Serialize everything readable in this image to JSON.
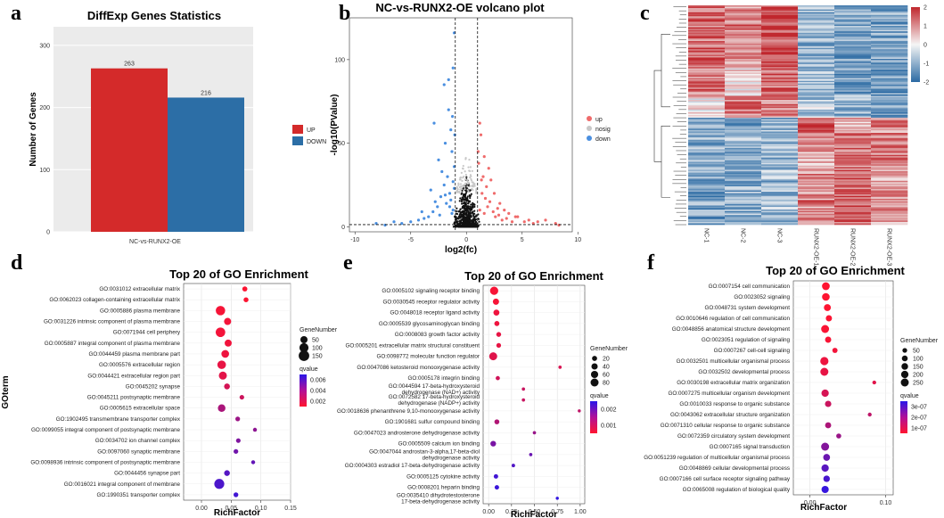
{
  "panel_letters": [
    "a",
    "b",
    "c",
    "d",
    "e",
    "f"
  ],
  "colors": {
    "up": "#d42a2a",
    "down": "#2c6ea6",
    "nosig": "#c8c8c8",
    "volcano_up": "#ef6b6b",
    "volcano_down": "#4a8fe0",
    "q_low": "#ff1430",
    "q_high": "#2a16e8"
  },
  "chart_data": [
    {
      "panel": "a",
      "type": "bar",
      "title": "DiffExp Genes Statistics",
      "xlabel": "NC-vs-RUNX2-OE",
      "ylabel": "Number of Genes",
      "categories": [
        "NC-vs-RUNX2-OE"
      ],
      "series": [
        {
          "name": "UP",
          "values": [
            263
          ]
        },
        {
          "name": "DOWN",
          "values": [
            216
          ]
        }
      ],
      "yticks": [
        "0",
        "100",
        "200",
        "300"
      ],
      "ylim": [
        0,
        330
      ],
      "legend": "right"
    },
    {
      "panel": "b",
      "type": "scatter",
      "title": "NC-vs-RUNX2-OE volcano plot",
      "xlabel": "log2(fc)",
      "ylabel": "-log10(PValue)",
      "xticks": [
        "-10",
        "-5",
        "0",
        "5",
        "10"
      ],
      "yticks": [
        "0",
        "50",
        "100"
      ],
      "xlim": [
        -10.5,
        9.5
      ],
      "ylim": [
        -3,
        125
      ],
      "legend_items": [
        "up",
        "nosig",
        "down"
      ],
      "legend": "right",
      "thresholds": {
        "log2fc": [
          -1,
          1
        ],
        "neg_log10_p": 1.3
      },
      "series": [
        {
          "name": "up",
          "points": [
            [
              1.2,
              10
            ],
            [
              1.4,
              20
            ],
            [
              1.6,
              8
            ],
            [
              1.9,
              12
            ],
            [
              2.1,
              15
            ],
            [
              2.4,
              9
            ],
            [
              2.6,
              6
            ],
            [
              2.9,
              7
            ],
            [
              3.2,
              4
            ],
            [
              3.6,
              5
            ],
            [
              4.1,
              3
            ],
            [
              4.6,
              6
            ],
            [
              5.2,
              3
            ],
            [
              6.0,
              2
            ],
            [
              6.4,
              3
            ],
            [
              7.1,
              4
            ],
            [
              8.0,
              2
            ],
            [
              8.3,
              1
            ],
            [
              1.3,
              55
            ],
            [
              1.1,
              38
            ],
            [
              1.5,
              30
            ],
            [
              1.8,
              24
            ],
            [
              2.2,
              28
            ],
            [
              1.6,
              42
            ],
            [
              2.0,
              35
            ],
            [
              1.2,
              62
            ],
            [
              2.5,
              20
            ],
            [
              3.0,
              14
            ],
            [
              3.4,
              10
            ],
            [
              1.7,
              17
            ],
            [
              2.8,
              11
            ],
            [
              3.8,
              8
            ],
            [
              4.4,
              6
            ],
            [
              5.6,
              4
            ],
            [
              1.05,
              45
            ],
            [
              1.35,
              28
            ]
          ]
        },
        {
          "name": "down",
          "points": [
            [
              -1.2,
              10
            ],
            [
              -1.5,
              20
            ],
            [
              -1.8,
              14
            ],
            [
              -2.0,
              25
            ],
            [
              -2.3,
              18
            ],
            [
              -2.6,
              12
            ],
            [
              -3.0,
              9
            ],
            [
              -3.4,
              6
            ],
            [
              -3.8,
              5
            ],
            [
              -4.3,
              4
            ],
            [
              -5.0,
              3
            ],
            [
              -5.8,
              2
            ],
            [
              -6.5,
              3
            ],
            [
              -7.3,
              1
            ],
            [
              -8.1,
              2
            ],
            [
              -1.1,
              116
            ],
            [
              -2.0,
              85
            ],
            [
              -1.6,
              70
            ],
            [
              -1.2,
              95
            ],
            [
              -2.9,
              62
            ],
            [
              -1.4,
              58
            ],
            [
              -1.9,
              50
            ],
            [
              -1.3,
              45
            ],
            [
              -2.5,
              40
            ],
            [
              -1.1,
              36
            ],
            [
              -1.7,
              30
            ],
            [
              -2.2,
              33
            ],
            [
              -1.2,
              27
            ],
            [
              -3.2,
              22
            ],
            [
              -1.9,
              19
            ],
            [
              -1.4,
              16
            ],
            [
              -2.8,
              15
            ],
            [
              -1.5,
              12
            ],
            [
              -4.0,
              9
            ],
            [
              -1.3,
              8
            ],
            [
              -2.4,
              7
            ],
            [
              -1.1,
              23
            ],
            [
              -1.05,
              55
            ],
            [
              -1.25,
              66
            ],
            [
              -1.6,
              88
            ]
          ]
        }
      ]
    },
    {
      "panel": "c",
      "type": "heatmap",
      "columns": [
        "NC-1",
        "NC-2",
        "NC-3",
        "RUNX2-OE-1",
        "RUNX2-OE-2",
        "RUNX2-OE-3"
      ],
      "colorbar_ticks": [
        "2",
        "1",
        "0",
        "-1",
        "-2"
      ],
      "clim": [
        -2,
        2
      ],
      "blocks": [
        {
          "rows": 42,
          "pattern": [
            1.3,
            1.1,
            1.7,
            -1.0,
            -1.1,
            -1.2
          ]
        },
        {
          "rows": 24,
          "pattern": [
            1.2,
            0.3,
            1.3,
            -0.8,
            -1.2,
            -1.3
          ]
        },
        {
          "rows": 16,
          "pattern": [
            0.2,
            1.2,
            1.1,
            -0.6,
            -0.9,
            -1.3
          ]
        },
        {
          "rows": 12,
          "pattern": [
            -1.1,
            -1.2,
            -1.0,
            1.7,
            0.8,
            1.0
          ]
        },
        {
          "rows": 26,
          "pattern": [
            -1.0,
            -0.9,
            -1.0,
            0.6,
            1.3,
            1.2
          ]
        },
        {
          "rows": 40,
          "pattern": [
            -1.2,
            -1.0,
            -0.9,
            1.1,
            1.5,
            0.9
          ]
        }
      ]
    },
    {
      "panel": "d",
      "type": "scatter",
      "title": "Top 20 of GO Enrichment",
      "xlabel": "RichFactor",
      "ylabel": "GOterm",
      "xticks": [
        "0.00",
        "0.05",
        "0.10",
        "0.15"
      ],
      "xlim": [
        -0.03,
        0.15
      ],
      "size_legend_title": "GeneNumber",
      "size_legend_values": [
        "50",
        "100",
        "150"
      ],
      "color_legend_title": "qvalue",
      "color_legend_ticks": [
        "0.006",
        "0.004",
        "0.002"
      ],
      "qlim": [
        0,
        0.0075
      ],
      "legend": "right",
      "points": [
        {
          "term": "GO:0031012 extracellular matrix",
          "rich": 0.073,
          "genes": 15,
          "q": 0.0001
        },
        {
          "term": "GO:0062023 collagen-containing extracellular matrix",
          "rich": 0.075,
          "genes": 13,
          "q": 0.0001
        },
        {
          "term": "GO:0005886 plasma membrane",
          "rich": 0.032,
          "genes": 110,
          "q": 0.0003
        },
        {
          "term": "GO:0031226 intrinsic component of plasma membrane",
          "rich": 0.044,
          "genes": 50,
          "q": 0.0004
        },
        {
          "term": "GO:0071944 cell periphery",
          "rich": 0.032,
          "genes": 115,
          "q": 0.0004
        },
        {
          "term": "GO:0005887 integral component of plasma membrane",
          "rich": 0.045,
          "genes": 48,
          "q": 0.0005
        },
        {
          "term": "GO:0044459 plasma membrane part",
          "rich": 0.04,
          "genes": 62,
          "q": 0.0006
        },
        {
          "term": "GO:0005576 extracellular region",
          "rich": 0.034,
          "genes": 85,
          "q": 0.0008
        },
        {
          "term": "GO:0044421 extracellular region part",
          "rich": 0.036,
          "genes": 70,
          "q": 0.001
        },
        {
          "term": "GO:0045202 synapse",
          "rich": 0.043,
          "genes": 26,
          "q": 0.0015
        },
        {
          "term": "GO:0045211 postsynaptic membrane",
          "rich": 0.068,
          "genes": 10,
          "q": 0.0018
        },
        {
          "term": "GO:0005615 extracellular space",
          "rich": 0.034,
          "genes": 60,
          "q": 0.003
        },
        {
          "term": "GO:1902495 transmembrane transporter complex",
          "rich": 0.061,
          "genes": 11,
          "q": 0.0035
        },
        {
          "term": "GO:0099055 integral component of postsynaptic membrane",
          "rich": 0.09,
          "genes": 5,
          "q": 0.004
        },
        {
          "term": "GO:0034702 ion channel complex",
          "rich": 0.062,
          "genes": 10,
          "q": 0.0045
        },
        {
          "term": "GO:0097060 synaptic membrane",
          "rich": 0.058,
          "genes": 11,
          "q": 0.005
        },
        {
          "term": "GO:0098936 intrinsic component of postsynaptic membrane",
          "rich": 0.087,
          "genes": 5,
          "q": 0.0055
        },
        {
          "term": "GO:0044456 synapse part",
          "rich": 0.043,
          "genes": 24,
          "q": 0.006
        },
        {
          "term": "GO:0016021 integral component of membrane",
          "rich": 0.03,
          "genes": 130,
          "q": 0.0063
        },
        {
          "term": "GO:1990351 transporter complex",
          "rich": 0.058,
          "genes": 12,
          "q": 0.0067
        }
      ]
    },
    {
      "panel": "e",
      "type": "scatter",
      "title": "Top 20 of GO Enrichment",
      "xlabel": "RichFactor",
      "xticks": [
        "0.00",
        "0.25",
        "0.50",
        "0.75",
        "1.00"
      ],
      "xlim": [
        -0.06,
        1.05
      ],
      "size_legend_title": "GeneNumber",
      "size_legend_values": [
        "20",
        "40",
        "60",
        "80"
      ],
      "color_legend_title": "qvalue",
      "color_legend_ticks": [
        "0.002",
        "0.001"
      ],
      "qlim": [
        0,
        0.0027
      ],
      "legend": "right",
      "points": [
        {
          "term": "GO:0005102 signaling receptor binding",
          "rich": 0.06,
          "genes": 85,
          "q": 0.0001
        },
        {
          "term": "GO:0030545 receptor regulator activity",
          "rich": 0.08,
          "genes": 38,
          "q": 0.0001
        },
        {
          "term": "GO:0048018 receptor ligand activity",
          "rich": 0.085,
          "genes": 34,
          "q": 0.0002
        },
        {
          "term": "GO:0005539 glycosaminoglycan binding",
          "rich": 0.09,
          "genes": 20,
          "q": 0.0002
        },
        {
          "term": "GO:0008083 growth factor activity",
          "rich": 0.11,
          "genes": 17,
          "q": 0.0003
        },
        {
          "term": "GO:0005201 extracellular matrix structural constituent",
          "rich": 0.11,
          "genes": 15,
          "q": 0.0003
        },
        {
          "term": "GO:0098772 molecular function regulator",
          "rich": 0.05,
          "genes": 78,
          "q": 0.0004
        },
        {
          "term": "GO:0047086 ketosteroid monooxygenase activity",
          "rich": 0.78,
          "genes": 3,
          "q": 0.0005
        },
        {
          "term": "GO:0005178 integrin binding",
          "rich": 0.1,
          "genes": 10,
          "q": 0.0006
        },
        {
          "term": "GO:0044594 17-beta-hydroxysteroid\ndehydrogenase (NAD+) activity",
          "rich": 0.38,
          "genes": 3,
          "q": 0.0007
        },
        {
          "term": "GO:0072582 17-beta-hydroxysteroid\ndehydrogenase (NADP+) activity",
          "rich": 0.38,
          "genes": 3,
          "q": 0.0007
        },
        {
          "term": "GO:0018636 phenanthrene 9,10-monooxygenase activity",
          "rich": 0.99,
          "genes": 2,
          "q": 0.0008
        },
        {
          "term": "GO:1901681 sulfur compound binding",
          "rich": 0.09,
          "genes": 18,
          "q": 0.001
        },
        {
          "term": "GO:0047023 androsterone dehydrogenase activity",
          "rich": 0.5,
          "genes": 3,
          "q": 0.0013
        },
        {
          "term": "GO:0005509 calcium ion binding",
          "rich": 0.05,
          "genes": 28,
          "q": 0.0017
        },
        {
          "term": "GO:0047044 androstan-3-alpha,17-beta-diol\ndehydrogenase activity",
          "rich": 0.46,
          "genes": 3,
          "q": 0.0019
        },
        {
          "term": "GO:0004303 estradiol 17-beta-dehydrogenase activity",
          "rich": 0.27,
          "genes": 4,
          "q": 0.0022
        },
        {
          "term": "GO:0005125 cytokine activity",
          "rich": 0.08,
          "genes": 12,
          "q": 0.0024
        },
        {
          "term": "GO:0008201 heparin binding",
          "rich": 0.09,
          "genes": 12,
          "q": 0.0025
        },
        {
          "term": "GO:0035410 dihydrotestosterone\n17-beta-dehydrogenase activity",
          "rich": 0.75,
          "genes": 2,
          "q": 0.0026
        }
      ]
    },
    {
      "panel": "f",
      "type": "scatter",
      "title": "Top 20 of GO Enrichment",
      "xlabel": "RichFactor",
      "xticks": [
        "0.00",
        "0.10"
      ],
      "xlim": [
        -0.022,
        0.11
      ],
      "size_legend_title": "GeneNumber",
      "size_legend_values": [
        "50",
        "100",
        "150",
        "200",
        "250"
      ],
      "color_legend_title": "qvalue",
      "color_legend_ticks": [
        "3e-07",
        "2e-07",
        "1e-07"
      ],
      "qlim": [
        0,
        3.6e-07
      ],
      "legend": "right",
      "points": [
        {
          "term": "GO:0007154 cell communication",
          "rich": 0.021,
          "genes": 230,
          "q": 1e-09
        },
        {
          "term": "GO:0023052 signaling",
          "rich": 0.021,
          "genes": 225,
          "q": 1e-09
        },
        {
          "term": "GO:0048731 system development",
          "rich": 0.023,
          "genes": 170,
          "q": 2e-09
        },
        {
          "term": "GO:0010646 regulation of cell communication",
          "rich": 0.025,
          "genes": 120,
          "q": 5e-09
        },
        {
          "term": "GO:0048856 anatomical structure development",
          "rich": 0.02,
          "genes": 245,
          "q": 8e-09
        },
        {
          "term": "GO:0023051 regulation of signaling",
          "rich": 0.024,
          "genes": 118,
          "q": 1e-08
        },
        {
          "term": "GO:0007267 cell-cell signaling",
          "rich": 0.033,
          "genes": 70,
          "q": 2e-08
        },
        {
          "term": "GO:0032501 multicellular organismal process",
          "rich": 0.019,
          "genes": 270,
          "q": 3e-08
        },
        {
          "term": "GO:0032502 developmental process",
          "rich": 0.019,
          "genes": 255,
          "q": 4e-08
        },
        {
          "term": "GO:0030198 extracellular matrix organization",
          "rich": 0.085,
          "genes": 22,
          "q": 5e-08
        },
        {
          "term": "GO:0007275 multicellular organism development",
          "rich": 0.02,
          "genes": 200,
          "q": 7e-08
        },
        {
          "term": "GO:0010033 response to organic substance",
          "rich": 0.024,
          "genes": 130,
          "q": 9e-08
        },
        {
          "term": "GO:0043062 extracellular structure organization",
          "rich": 0.079,
          "genes": 23,
          "q": 1.1e-07
        },
        {
          "term": "GO:0071310 cellular response to organic substance",
          "rich": 0.024,
          "genes": 115,
          "q": 1.4e-07
        },
        {
          "term": "GO:0072359 circulatory system development",
          "rich": 0.038,
          "genes": 60,
          "q": 1.7e-07
        },
        {
          "term": "GO:0007165 signal transduction",
          "rich": 0.02,
          "genes": 250,
          "q": 2.1e-07
        },
        {
          "term": "GO:0051239 regulation of multicellular organismal process",
          "rich": 0.022,
          "genes": 160,
          "q": 2.5e-07
        },
        {
          "term": "GO:0048869 cellular developmental process",
          "rich": 0.02,
          "genes": 200,
          "q": 2.8e-07
        },
        {
          "term": "GO:0007166 cell surface receptor signaling pathway",
          "rich": 0.022,
          "genes": 140,
          "q": 3.1e-07
        },
        {
          "term": "GO:0065008 regulation of biological quality",
          "rich": 0.02,
          "genes": 190,
          "q": 3.4e-07
        }
      ]
    }
  ]
}
